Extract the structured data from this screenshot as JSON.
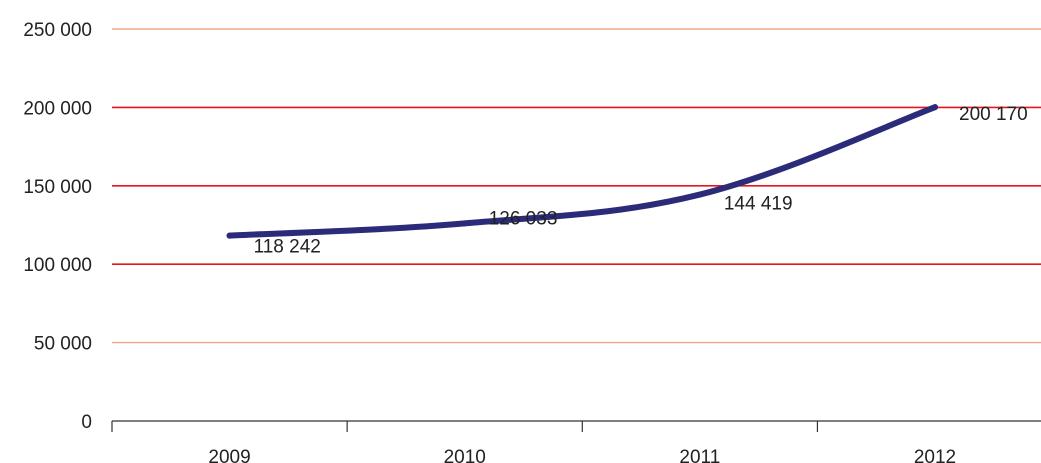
{
  "chart_data": {
    "type": "line",
    "title": "",
    "xlabel": "",
    "ylabel": "",
    "categories": [
      "2009",
      "2010",
      "2011",
      "2012"
    ],
    "series": [
      {
        "values": [
          118242,
          126033,
          144419,
          200170
        ]
      }
    ],
    "data_labels": [
      "118 242",
      "126 033",
      "144 419",
      "200 170"
    ],
    "y_ticks": [
      {
        "value": 0,
        "label": "0"
      },
      {
        "value": 50000,
        "label": "50 000"
      },
      {
        "value": 100000,
        "label": "100 000"
      },
      {
        "value": 150000,
        "label": "150 000"
      },
      {
        "value": 200000,
        "label": "200 000"
      },
      {
        "value": 250000,
        "label": "250 000"
      }
    ],
    "ylim": [
      0,
      250000
    ],
    "grid": true,
    "legend": "none",
    "colors": {
      "line": "#2b2b7a",
      "grid_major": "#e8141e",
      "grid_minor": "#f4a58a",
      "axis": "#333333"
    }
  }
}
